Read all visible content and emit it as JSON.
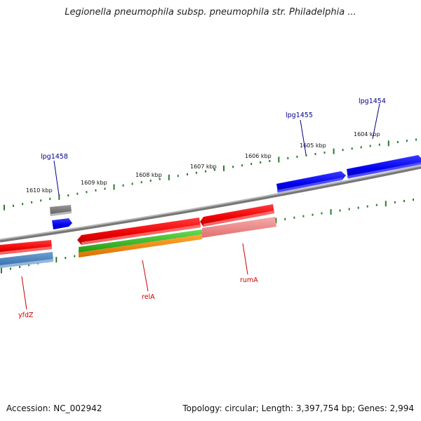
{
  "title": "Legionella pneumophila subsp. pneumophila str. Philadelphia ...",
  "footer": {
    "accession": "Accession: NC_002942",
    "summary": "Topology: circular; Length: 3,397,754 bp; Genes: 2,994"
  },
  "colors": {
    "backbone": "#8a8a8a",
    "forward_gene": "#0000ee",
    "forward_label": "#00008b",
    "reverse_gene": "#ee0000",
    "reverse_label": "#cc0000",
    "pseudo_gene": "#6e6e6e",
    "rna_green": "#33bb22",
    "rna_orange": "#f08800",
    "light_red": "#f08a8a",
    "steel_blue": "#4a7fb6",
    "tick": "#2a7a2a"
  },
  "scale": {
    "labels": [
      {
        "text": "1610 kbp"
      },
      {
        "text": "1609 kbp"
      },
      {
        "text": "1608 kbp"
      },
      {
        "text": "1607 kbp"
      },
      {
        "text": "1606 kbp"
      },
      {
        "text": "1605 kbp"
      },
      {
        "text": "1604 kbp"
      }
    ]
  },
  "genes": [
    {
      "name": "lpg1454",
      "strand": "forward",
      "color": "forward_gene"
    },
    {
      "name": "lpg1455",
      "strand": "forward",
      "color": "forward_gene"
    },
    {
      "name": "lpg1458",
      "strand": "forward",
      "color": "forward_gene"
    },
    {
      "name": "rumA",
      "strand": "reverse",
      "color": "reverse_gene"
    },
    {
      "name": "relA",
      "strand": "reverse",
      "color": "reverse_gene"
    },
    {
      "name": "yfdZ",
      "strand": "reverse",
      "color": "reverse_gene"
    }
  ]
}
